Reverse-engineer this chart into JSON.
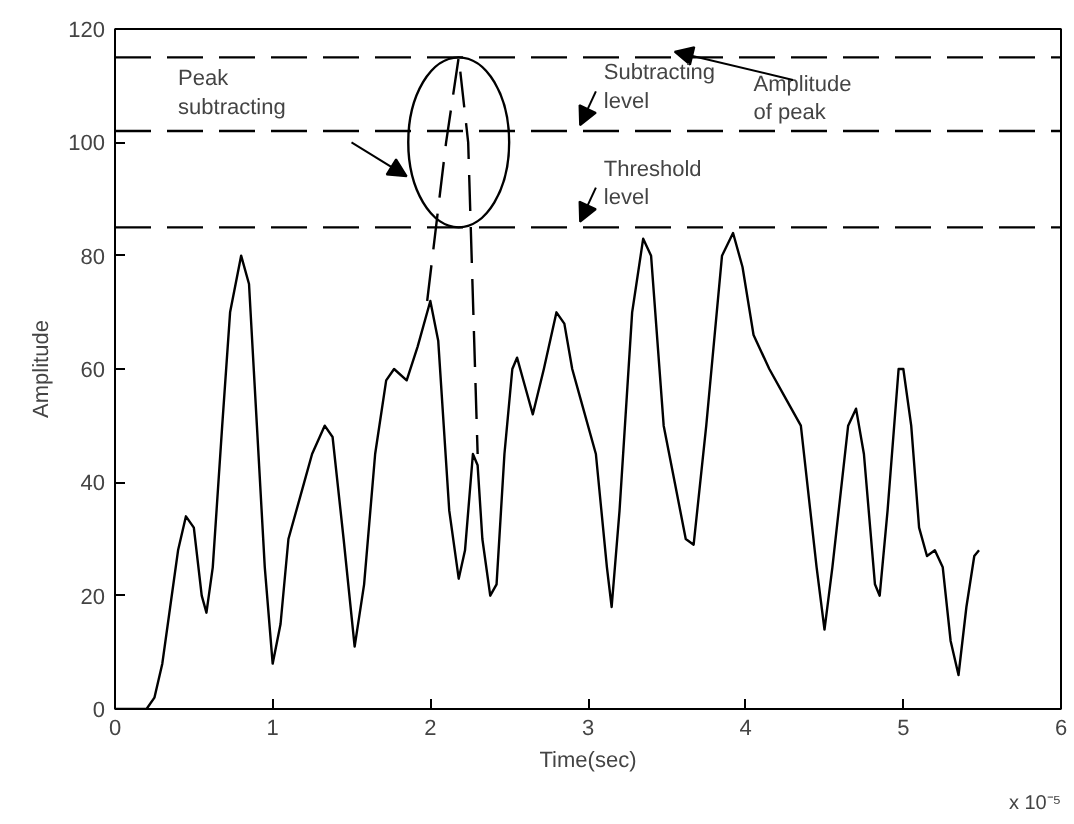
{
  "chart_data": {
    "type": "line",
    "xlabel": "Time(sec)",
    "ylabel": "Amplitude",
    "xlim": [
      0,
      6
    ],
    "ylim": [
      0,
      120
    ],
    "xticks": [
      0,
      1,
      2,
      3,
      4,
      5,
      6
    ],
    "yticks": [
      0,
      20,
      40,
      60,
      80,
      100,
      120
    ],
    "grid": false,
    "series": [
      {
        "color": "#000000",
        "line_style": "solid",
        "x": [
          0,
          0.2,
          0.25,
          0.3,
          0.35,
          0.4,
          0.45,
          0.5,
          0.55,
          0.58,
          0.62,
          0.68,
          0.73,
          0.8,
          0.85,
          0.9,
          0.95,
          1.0,
          1.05,
          1.1,
          1.2,
          1.25,
          1.33,
          1.38,
          1.45,
          1.52,
          1.58,
          1.65,
          1.72,
          1.77,
          1.85,
          1.92,
          2.0,
          2.05,
          2.12,
          2.18,
          2.22,
          2.27,
          2.3,
          2.33,
          2.38,
          2.42,
          2.47,
          2.52,
          2.55,
          2.6,
          2.65,
          2.72,
          2.8,
          2.85,
          2.9,
          2.95,
          3.05,
          3.12,
          3.15,
          3.2,
          3.28,
          3.35,
          3.4,
          3.48,
          3.55,
          3.62,
          3.67,
          3.75,
          3.85,
          3.92,
          3.98,
          4.05,
          4.15,
          4.25,
          4.35,
          4.45,
          4.5,
          4.55,
          4.65,
          4.7,
          4.75,
          4.82,
          4.85,
          4.9,
          4.97,
          5.0,
          5.05,
          5.1,
          5.15,
          5.2,
          5.25,
          5.3,
          5.35,
          5.4,
          5.45,
          5.48
        ],
        "values": [
          0,
          0,
          2,
          8,
          18,
          28,
          34,
          32,
          20,
          17,
          25,
          50,
          70,
          80,
          75,
          50,
          25,
          8,
          15,
          30,
          40,
          45,
          50,
          48,
          30,
          11,
          22,
          45,
          58,
          60,
          58,
          64,
          72,
          65,
          35,
          23,
          28,
          45,
          43,
          30,
          20,
          22,
          45,
          60,
          62,
          57,
          52,
          60,
          70,
          68,
          60,
          55,
          45,
          25,
          18,
          35,
          70,
          83,
          80,
          50,
          40,
          30,
          29,
          50,
          80,
          84,
          78,
          66,
          60,
          55,
          50,
          25,
          14,
          25,
          50,
          53,
          45,
          22,
          20,
          35,
          60,
          60,
          50,
          32,
          27,
          28,
          25,
          12,
          6,
          18,
          27,
          28
        ]
      },
      {
        "color": "#000000",
        "line_style": "dashed",
        "x": [
          1.98,
          2.1,
          2.18,
          2.24,
          2.3
        ],
        "values": [
          72,
          100,
          115,
          100,
          45
        ]
      }
    ],
    "ref_lines": [
      {
        "axis": "y",
        "value": 115,
        "label": "Amplitude\nof peak",
        "line_style": "dashed"
      },
      {
        "axis": "y",
        "value": 102,
        "label": "Subtracting\nlevel",
        "line_style": "dashed"
      },
      {
        "axis": "y",
        "value": 85,
        "label": "Threshold\nlevel",
        "line_style": "dashed"
      }
    ],
    "annotations": [
      "Peak\nsubtracting",
      "x 10⁻⁵"
    ]
  }
}
